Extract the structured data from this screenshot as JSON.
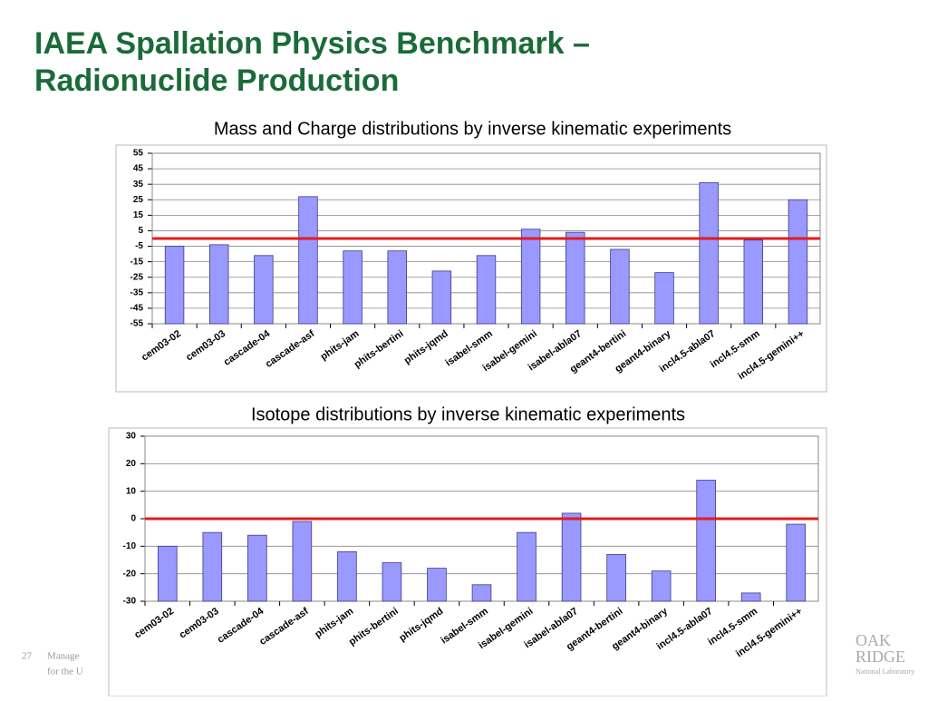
{
  "header": {
    "title_lines": [
      "IAEA Spallation Physics Benchmark –",
      "Radionuclide Production"
    ]
  },
  "footer": {
    "page": "27",
    "lines": [
      "Manage",
      "for the U"
    ],
    "logo": [
      "OAK",
      "RIDGE",
      "National Laboratory"
    ]
  },
  "chart_data": [
    {
      "type": "bar",
      "title": "Mass and Charge distributions by inverse kinematic experiments",
      "categories": [
        "cem03-02",
        "cem03-03",
        "cascade-04",
        "cascade-asf",
        "phits-jam",
        "phits-bertini",
        "phits-jqmd",
        "isabel-smm",
        "isabel-gemini",
        "isabel-abla07",
        "geant4-bertini",
        "geant4-binary",
        "incl4.5-abla07",
        "incl4.5-smm",
        "incl4.5-gemini++"
      ],
      "values": [
        -5,
        -4,
        -11,
        27,
        -8,
        -8,
        -21,
        -11,
        6,
        4,
        -7,
        -22,
        36,
        -1,
        25
      ],
      "color": "#9999ff",
      "edge_color": "#3a3a8c",
      "ylim": [
        -55,
        55
      ],
      "yticks": [
        -55,
        -45,
        -35,
        -25,
        -15,
        -5,
        5,
        15,
        25,
        35,
        45,
        55
      ],
      "grid": true,
      "reference_line": {
        "value": 0,
        "color": "#e41a1c"
      }
    },
    {
      "type": "bar",
      "title": "Isotope distributions by inverse kinematic experiments",
      "categories": [
        "cem03-02",
        "cem03-03",
        "cascade-04",
        "cascade-asf",
        "phits-jam",
        "phits-bertini",
        "phits-jqmd",
        "isabel-smm",
        "isabel-gemini",
        "isabel-abla07",
        "geant4-bertini",
        "geant4-binary",
        "incl4.5-abla07",
        "incl4.5-smm",
        "incl4.5-gemini++"
      ],
      "values": [
        -10,
        -5,
        -6,
        -1,
        -12,
        -16,
        -18,
        -24,
        -5,
        2,
        -13,
        -19,
        14,
        -27,
        -2
      ],
      "color": "#9999ff",
      "edge_color": "#3a3a8c",
      "ylim": [
        -30,
        30
      ],
      "yticks": [
        -30,
        -20,
        -10,
        0,
        10,
        20,
        30
      ],
      "grid": true,
      "reference_line": {
        "value": 0,
        "color": "#e41a1c"
      }
    }
  ]
}
